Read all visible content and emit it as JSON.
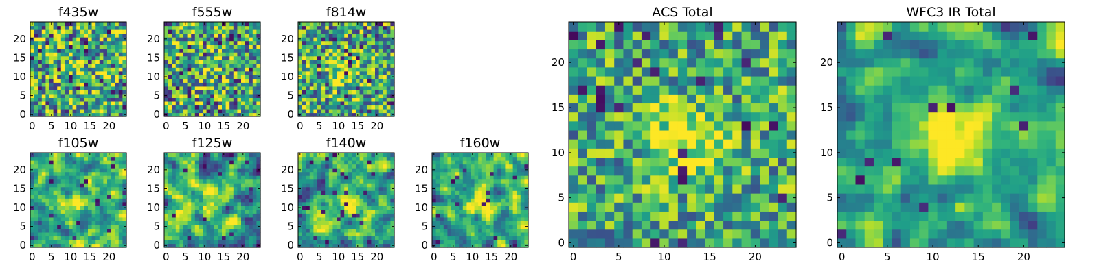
{
  "chart_data": [
    {
      "type": "heatmap",
      "title": "f435w",
      "grid": [
        25,
        25
      ],
      "xlim": [
        0,
        25
      ],
      "ylim": [
        0,
        25
      ],
      "xticks": [
        0,
        5,
        10,
        15,
        20
      ],
      "yticks": [
        0,
        5,
        10,
        15,
        20
      ],
      "colormap": "viridis",
      "seed": 11,
      "blob": 0.1,
      "smooth": 0,
      "noise": 0.9,
      "base": 0.62,
      "dark": 0.07
    },
    {
      "type": "heatmap",
      "title": "f555w",
      "grid": [
        25,
        25
      ],
      "xlim": [
        0,
        25
      ],
      "ylim": [
        0,
        25
      ],
      "xticks": [
        0,
        5,
        10,
        15,
        20
      ],
      "yticks": [
        0,
        5,
        10,
        15,
        20
      ],
      "colormap": "viridis",
      "seed": 23,
      "blob": 0.15,
      "smooth": 0,
      "noise": 0.9,
      "base": 0.62,
      "dark": 0.06
    },
    {
      "type": "heatmap",
      "title": "f814w",
      "grid": [
        25,
        25
      ],
      "xlim": [
        0,
        25
      ],
      "ylim": [
        0,
        25
      ],
      "xticks": [
        0,
        5,
        10,
        15,
        20
      ],
      "yticks": [
        0,
        5,
        10,
        15,
        20
      ],
      "colormap": "viridis",
      "seed": 37,
      "blob": 0.4,
      "smooth": 0,
      "noise": 0.85,
      "base": 0.6,
      "dark": 0.06
    },
    {
      "type": "heatmap",
      "title": "f105w",
      "grid": [
        25,
        25
      ],
      "xlim": [
        0,
        25
      ],
      "ylim": [
        0,
        25
      ],
      "xticks": [
        0,
        5,
        10,
        15,
        20
      ],
      "yticks": [
        0,
        5,
        10,
        15,
        20
      ],
      "colormap": "viridis",
      "seed": 41,
      "blob": 0.3,
      "smooth": 1,
      "noise": 0.8,
      "base": 0.62,
      "dark": 0.02
    },
    {
      "type": "heatmap",
      "title": "f125w",
      "grid": [
        25,
        25
      ],
      "xlim": [
        0,
        25
      ],
      "ylim": [
        0,
        25
      ],
      "xticks": [
        0,
        5,
        10,
        15,
        20
      ],
      "yticks": [
        0,
        5,
        10,
        15,
        20
      ],
      "colormap": "viridis",
      "seed": 53,
      "blob": 0.25,
      "smooth": 1,
      "noise": 0.85,
      "base": 0.6,
      "dark": 0.03
    },
    {
      "type": "heatmap",
      "title": "f140w",
      "grid": [
        25,
        25
      ],
      "xlim": [
        0,
        25
      ],
      "ylim": [
        0,
        25
      ],
      "xticks": [
        0,
        5,
        10,
        15,
        20
      ],
      "yticks": [
        0,
        5,
        10,
        15,
        20
      ],
      "colormap": "viridis",
      "seed": 67,
      "blob": 0.3,
      "smooth": 1,
      "noise": 0.8,
      "base": 0.62,
      "dark": 0.03
    },
    {
      "type": "heatmap",
      "title": "f160w",
      "grid": [
        25,
        25
      ],
      "xlim": [
        0,
        25
      ],
      "ylim": [
        0,
        25
      ],
      "xticks": [
        0,
        5,
        10,
        15,
        20
      ],
      "yticks": [
        0,
        5,
        10,
        15,
        20
      ],
      "colormap": "viridis",
      "seed": 79,
      "blob": 0.45,
      "smooth": 1,
      "noise": 0.75,
      "base": 0.62,
      "dark": 0.03
    },
    {
      "type": "heatmap",
      "title": "ACS Total",
      "grid": [
        25,
        25
      ],
      "xlim": [
        0,
        25
      ],
      "ylim": [
        0,
        25
      ],
      "xticks": [
        0,
        5,
        10,
        15,
        20
      ],
      "yticks": [
        0,
        5,
        10,
        15,
        20
      ],
      "colormap": "viridis",
      "seed": 97,
      "blob": 0.45,
      "smooth": 0,
      "noise": 0.7,
      "base": 0.6,
      "dark": 0.04
    },
    {
      "type": "heatmap",
      "title": "WFC3 IR Total",
      "grid": [
        25,
        25
      ],
      "xlim": [
        0,
        25
      ],
      "ylim": [
        0,
        25
      ],
      "xticks": [
        0,
        5,
        10,
        15,
        20
      ],
      "yticks": [
        0,
        5,
        10,
        15,
        20
      ],
      "colormap": "viridis",
      "seed": 113,
      "blob": 0.55,
      "smooth": 1,
      "noise": 0.65,
      "base": 0.58,
      "dark": 0.02
    }
  ]
}
